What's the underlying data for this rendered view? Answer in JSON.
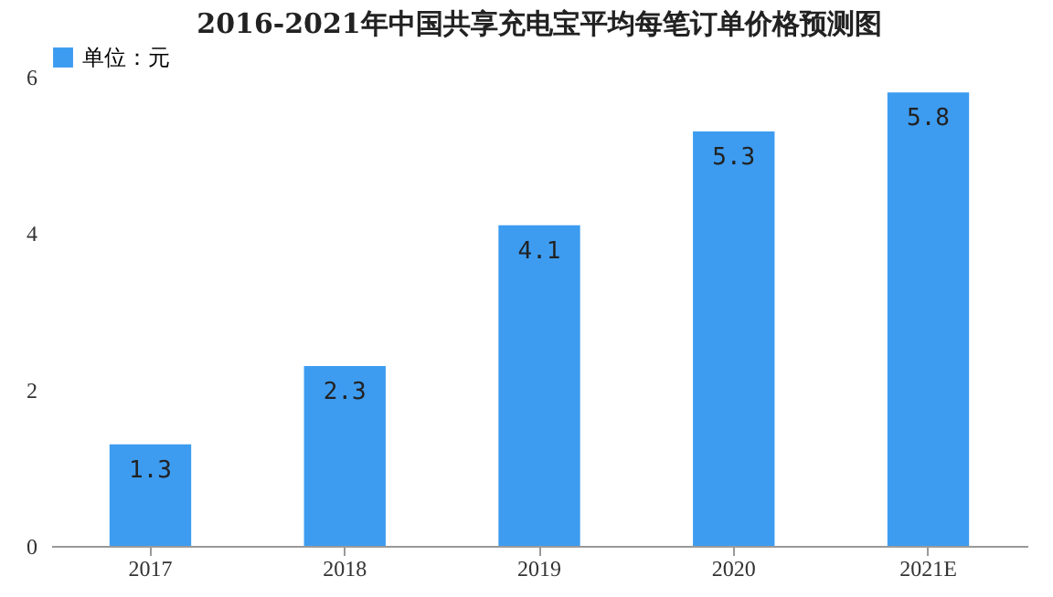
{
  "chart_data": {
    "type": "bar",
    "title": "2016-2021年中国共享充电宝平均每笔订单价格预测图",
    "categories": [
      "2017",
      "2018",
      "2019",
      "2020",
      "2021E"
    ],
    "series": [
      {
        "name": "单位：元",
        "color": "#3d9cf0",
        "values": [
          1.3,
          2.3,
          4.1,
          5.3,
          5.8
        ]
      }
    ],
    "ylim": [
      0,
      6
    ],
    "yticks": [
      0,
      2,
      4,
      6
    ],
    "grid": false,
    "legend": "top",
    "data_labels": true
  }
}
